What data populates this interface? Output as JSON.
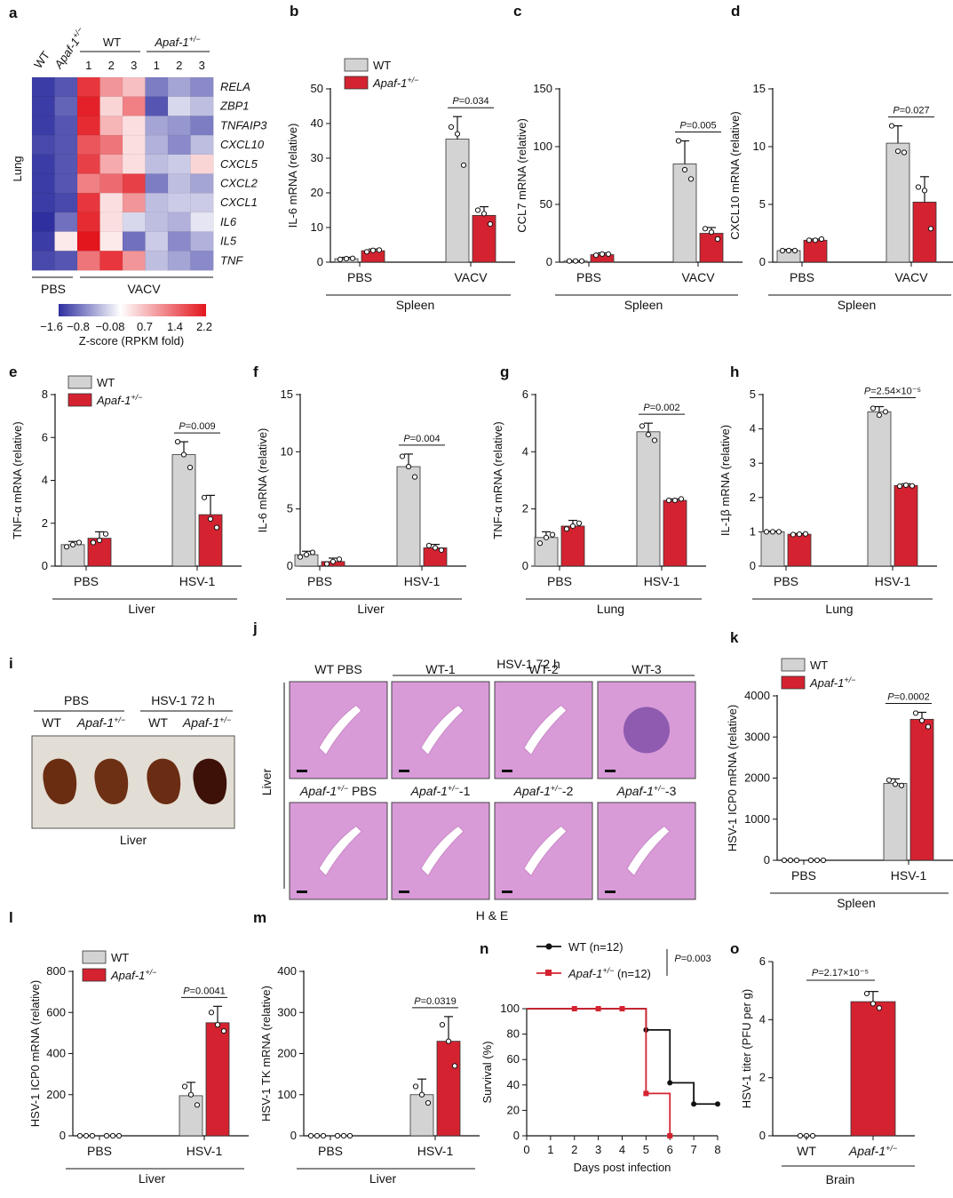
{
  "colors": {
    "wt": "#d3d3d3",
    "ko": "#d42230",
    "heat_low": "#2f2fa0",
    "heat_mid": "#ffffff",
    "heat_high": "#e3161e",
    "liver_bg": "#e3ded5",
    "tissue": "#d99ad8"
  },
  "legend": {
    "wt": "WT",
    "ko": "Apaf-1",
    "ko_sup": "+/−"
  },
  "heatmap": {
    "panel": "a",
    "col_labels": [
      "WT",
      "Apaf-1",
      "1",
      "2",
      "3",
      "1",
      "2",
      "3"
    ],
    "col_sup": "+/−",
    "group_wt": "WT",
    "group_ko": "Apaf-1",
    "group_ko_sup": "+/−",
    "row_title": "Lung",
    "genes": [
      "RELA",
      "ZBP1",
      "TNFAIP3",
      "CXCL10",
      "CXCL5",
      "CXCL2",
      "CXCL1",
      "IL6",
      "IL5",
      "TNF"
    ],
    "values": [
      [
        -1.5,
        -1.3,
        1.9,
        1.0,
        0.6,
        -1.0,
        -0.7,
        -0.9
      ],
      [
        -1.5,
        -1.2,
        2.1,
        0.4,
        1.2,
        -1.3,
        -0.3,
        -0.5
      ],
      [
        -1.5,
        -1.3,
        2.0,
        0.7,
        0.3,
        -0.7,
        -0.8,
        -1.0
      ],
      [
        -1.4,
        -1.3,
        1.6,
        1.3,
        0.3,
        -0.6,
        -0.9,
        -0.5
      ],
      [
        -1.5,
        -1.3,
        1.8,
        0.8,
        0.3,
        -0.5,
        -0.4,
        0.4
      ],
      [
        -1.5,
        -1.3,
        1.2,
        1.4,
        1.8,
        -1.0,
        -0.5,
        -0.7
      ],
      [
        -1.5,
        -1.4,
        1.9,
        0.3,
        1.0,
        -0.5,
        -0.4,
        -0.4
      ],
      [
        -1.6,
        -1.1,
        2.0,
        0.3,
        -0.3,
        -0.5,
        -0.6,
        -0.2
      ],
      [
        -1.5,
        0.2,
        2.2,
        0.2,
        -1.1,
        -0.4,
        -0.9,
        -0.6
      ],
      [
        -1.4,
        -1.3,
        1.3,
        1.9,
        1.0,
        -0.5,
        -0.7,
        -0.9
      ]
    ],
    "groups": [
      "PBS",
      "VACV"
    ],
    "colorbar_ticks": [
      "−1.6",
      "−0.8",
      "−0.08",
      "0.7",
      "1.4",
      "2.2"
    ],
    "colorbar_title": "Z-score  (RPKM fold)"
  },
  "chart_data": [
    {
      "panel": "b",
      "type": "bar",
      "ylabel": "IL-6 mRNA (relative)",
      "ylim": [
        0,
        50
      ],
      "yticks": [
        0,
        10,
        20,
        30,
        40,
        50
      ],
      "categories": [
        "PBS",
        "VACV"
      ],
      "tissue": "Spleen",
      "series": [
        {
          "name": "WT",
          "values": [
            1.0,
            35.5
          ],
          "err": [
            0.4,
            6.5
          ],
          "points": [
            [
              0.8,
              1.0,
              1.1
            ],
            [
              39,
              37,
              28
            ]
          ]
        },
        {
          "name": "Apaf-1+/-",
          "values": [
            3.3,
            13.5
          ],
          "err": [
            0.5,
            2.5
          ],
          "points": [
            [
              3.0,
              3.4,
              3.5
            ],
            [
              15,
              14,
              11
            ]
          ]
        }
      ],
      "pval": "P=0.034",
      "legend": true
    },
    {
      "panel": "c",
      "type": "bar",
      "ylabel": "CCL7 mRNA (relative)",
      "ylim": [
        0,
        150
      ],
      "yticks": [
        0,
        50,
        100,
        150
      ],
      "categories": [
        "PBS",
        "VACV"
      ],
      "tissue": "Spleen",
      "series": [
        {
          "name": "WT",
          "values": [
            1.0,
            85
          ],
          "err": [
            0.2,
            20
          ],
          "points": [
            [
              1,
              1,
              1
            ],
            [
              105,
              80,
              72
            ]
          ]
        },
        {
          "name": "Apaf-1+/-",
          "values": [
            6.5,
            25
          ],
          "err": [
            1.5,
            5
          ],
          "points": [
            [
              6,
              7,
              7
            ],
            [
              29,
              26,
              20
            ]
          ]
        }
      ],
      "pval": "P=0.005"
    },
    {
      "panel": "d",
      "type": "bar",
      "ylabel": "CXCL10 mRNA (relative)",
      "ylim": [
        0,
        15
      ],
      "yticks": [
        0,
        5,
        10,
        15
      ],
      "categories": [
        "PBS",
        "VACV"
      ],
      "tissue": "Spleen",
      "series": [
        {
          "name": "WT",
          "values": [
            1.0,
            10.3
          ],
          "err": [
            0.1,
            1.5
          ],
          "points": [
            [
              1,
              1,
              1
            ],
            [
              11.8,
              9.6,
              9.5
            ]
          ]
        },
        {
          "name": "Apaf-1+/-",
          "values": [
            1.9,
            5.2
          ],
          "err": [
            0.1,
            2.2
          ],
          "points": [
            [
              1.9,
              1.9,
              2.0
            ],
            [
              6.5,
              6.2,
              2.9
            ]
          ]
        }
      ],
      "pval": "P=0.027"
    },
    {
      "panel": "e",
      "type": "bar",
      "ylabel": "TNF-α mRNA (relative)",
      "ylim": [
        0,
        8
      ],
      "yticks": [
        0,
        2,
        4,
        6,
        8
      ],
      "categories": [
        "PBS",
        "HSV-1"
      ],
      "tissue": "Liver",
      "series": [
        {
          "name": "WT",
          "values": [
            1.0,
            5.2
          ],
          "err": [
            0.15,
            0.6
          ],
          "points": [
            [
              0.9,
              1.0,
              1.1
            ],
            [
              5.8,
              5.2,
              4.6
            ]
          ]
        },
        {
          "name": "Apaf-1+/-",
          "values": [
            1.3,
            2.4
          ],
          "err": [
            0.3,
            0.9
          ],
          "points": [
            [
              1.1,
              1.2,
              1.5
            ],
            [
              3.2,
              2.2,
              1.8
            ]
          ]
        }
      ],
      "pval": "P=0.009",
      "legend": true
    },
    {
      "panel": "f",
      "type": "bar",
      "ylabel": "IL-6 mRNA (relative)",
      "ylim": [
        0,
        15
      ],
      "yticks": [
        0,
        5,
        10,
        15
      ],
      "categories": [
        "PBS",
        "HSV-1"
      ],
      "tissue": "Liver",
      "series": [
        {
          "name": "WT",
          "values": [
            1.0,
            8.7
          ],
          "err": [
            0.3,
            1.1
          ],
          "points": [
            [
              0.8,
              1.0,
              1.2
            ],
            [
              9.6,
              8.7,
              7.8
            ]
          ]
        },
        {
          "name": "Apaf-1+/-",
          "values": [
            0.4,
            1.6
          ],
          "err": [
            0.3,
            0.3
          ],
          "points": [
            [
              0.2,
              0.4,
              0.6
            ],
            [
              1.8,
              1.6,
              1.4
            ]
          ]
        }
      ],
      "pval": "P=0.004"
    },
    {
      "panel": "g",
      "type": "bar",
      "ylabel": "TNF-α mRNA (relative)",
      "ylim": [
        0,
        6
      ],
      "yticks": [
        0,
        2,
        4,
        6
      ],
      "categories": [
        "PBS",
        "HSV-1"
      ],
      "tissue": "Lung",
      "series": [
        {
          "name": "WT",
          "values": [
            1.0,
            4.7
          ],
          "err": [
            0.2,
            0.3
          ],
          "points": [
            [
              0.8,
              1.0,
              1.1
            ],
            [
              4.9,
              4.6,
              4.4
            ]
          ]
        },
        {
          "name": "Apaf-1+/-",
          "values": [
            1.4,
            2.3
          ],
          "err": [
            0.2,
            0.05
          ],
          "points": [
            [
              1.3,
              1.4,
              1.5
            ],
            [
              2.3,
              2.3,
              2.35
            ]
          ]
        }
      ],
      "pval": "P=0.002"
    },
    {
      "panel": "h",
      "type": "bar",
      "ylabel": "IL-1β mRNA (relative)",
      "ylim": [
        0,
        5
      ],
      "yticks": [
        0,
        1,
        2,
        3,
        4,
        5
      ],
      "categories": [
        "PBS",
        "HSV-1"
      ],
      "tissue": "Lung",
      "series": [
        {
          "name": "WT",
          "values": [
            1.0,
            4.5
          ],
          "err": [
            0.02,
            0.15
          ],
          "points": [
            [
              1,
              1,
              1
            ],
            [
              4.6,
              4.4,
              4.5
            ]
          ]
        },
        {
          "name": "Apaf-1+/-",
          "values": [
            0.93,
            2.35
          ],
          "err": [
            0.02,
            0.05
          ],
          "points": [
            [
              0.92,
              0.93,
              0.94
            ],
            [
              2.33,
              2.36,
              2.34
            ]
          ]
        }
      ],
      "pval": "P=2.54×10⁻⁵"
    },
    {
      "panel": "k",
      "type": "bar",
      "ylabel": "HSV-1 ICP0 mRNA (relative)",
      "ylim": [
        0,
        4000
      ],
      "yticks": [
        0,
        1000,
        2000,
        3000,
        4000
      ],
      "categories": [
        "PBS",
        "HSV-1"
      ],
      "tissue": "Spleen",
      "series": [
        {
          "name": "WT",
          "values": [
            0,
            1870
          ],
          "err": [
            0,
            110
          ],
          "points": [
            [
              0,
              0,
              0
            ],
            [
              1950,
              1850,
              1820
            ]
          ]
        },
        {
          "name": "Apaf-1+/-",
          "values": [
            0,
            3430
          ],
          "err": [
            0,
            170
          ],
          "points": [
            [
              0,
              0,
              0
            ],
            [
              3580,
              3400,
              3250
            ]
          ]
        }
      ],
      "pval": "P=0.0002",
      "legend": true
    },
    {
      "panel": "l",
      "type": "bar",
      "ylabel": "HSV-1 ICP0 mRNA (relative)",
      "ylim": [
        0,
        800
      ],
      "yticks": [
        0,
        200,
        400,
        600,
        800
      ],
      "categories": [
        "PBS",
        "HSV-1"
      ],
      "tissue": "Liver",
      "series": [
        {
          "name": "WT",
          "values": [
            0,
            195
          ],
          "err": [
            0,
            65
          ],
          "points": [
            [
              0,
              0,
              0
            ],
            [
              240,
              200,
              150
            ]
          ]
        },
        {
          "name": "Apaf-1+/-",
          "values": [
            0,
            550
          ],
          "err": [
            0,
            80
          ],
          "points": [
            [
              0,
              0,
              0
            ],
            [
              600,
              540,
              510
            ]
          ]
        }
      ],
      "pval": "P=0.0041",
      "legend": true
    },
    {
      "panel": "m",
      "type": "bar",
      "ylabel": "HSV-1 TK mRNA (relative)",
      "ylim": [
        0,
        400
      ],
      "yticks": [
        0,
        100,
        200,
        300,
        400
      ],
      "categories": [
        "PBS",
        "HSV-1"
      ],
      "tissue": "Liver",
      "series": [
        {
          "name": "WT",
          "values": [
            0,
            100
          ],
          "err": [
            0,
            38
          ],
          "points": [
            [
              0,
              0,
              0
            ],
            [
              120,
              100,
              80
            ]
          ]
        },
        {
          "name": "Apaf-1+/-",
          "values": [
            0,
            230
          ],
          "err": [
            0,
            60
          ],
          "points": [
            [
              0,
              0,
              0
            ],
            [
              270,
              230,
              170
            ]
          ]
        }
      ],
      "pval": "P=0.0319"
    },
    {
      "panel": "n",
      "type": "line",
      "xlabel": "Days post infection",
      "ylabel": "Survival (%)",
      "xlim": [
        0,
        8
      ],
      "ylim": [
        0,
        100
      ],
      "xticks": [
        0,
        1,
        2,
        3,
        4,
        5,
        6,
        7,
        8
      ],
      "yticks": [
        0,
        20,
        40,
        60,
        80,
        100
      ],
      "series": [
        {
          "name": "WT (n=12)",
          "x": [
            0,
            5,
            6,
            7,
            8
          ],
          "y": [
            100,
            83.3,
            41.7,
            25,
            25
          ],
          "markers": [
            [
              2,
              100
            ],
            [
              3,
              100
            ],
            [
              4,
              100
            ],
            [
              5,
              83.3
            ],
            [
              6,
              41.7
            ],
            [
              7,
              25
            ],
            [
              8,
              25
            ]
          ]
        },
        {
          "name": "Apaf-1+/- (n=12)",
          "x": [
            0,
            5,
            6
          ],
          "y": [
            100,
            33.3,
            0
          ],
          "markers": [
            [
              2,
              100
            ],
            [
              3,
              100
            ],
            [
              4,
              100
            ],
            [
              5,
              33.3
            ],
            [
              6,
              0
            ]
          ]
        }
      ],
      "pval": "P=0.003"
    },
    {
      "panel": "o",
      "type": "bar",
      "ylabel": "HSV-1 titer (PFU per g)",
      "ylim": [
        0,
        6
      ],
      "yticks": [
        0,
        2,
        4,
        6
      ],
      "categories": [
        "WT",
        "Apaf-1+/-"
      ],
      "tissue": "Brain",
      "values": [
        0,
        4.62
      ],
      "err": [
        0,
        0.35
      ],
      "points": [
        [
          0,
          0,
          0
        ],
        [
          4.9,
          4.55,
          4.4
        ]
      ],
      "pval": "P=2.17×10⁻⁵"
    }
  ],
  "panel_i": {
    "label": "i",
    "groups": [
      "PBS",
      "HSV-1 72 h"
    ],
    "samples": [
      "WT",
      "Apaf-1",
      "WT",
      "Apaf-1"
    ],
    "sup": "+/−",
    "caption": "Liver"
  },
  "panel_j": {
    "label": "j",
    "header": "HSV-1 72 h",
    "row_label": "Liver",
    "top": [
      "WT PBS",
      "WT-1",
      "WT-2",
      "WT-3"
    ],
    "bottom": [
      "Apaf-1",
      "Apaf-1",
      "Apaf-1",
      "Apaf-1"
    ],
    "bottom_suffix": [
      " PBS",
      "-1",
      "-2",
      "-3"
    ],
    "sup": "+/−",
    "caption": "H & E"
  }
}
